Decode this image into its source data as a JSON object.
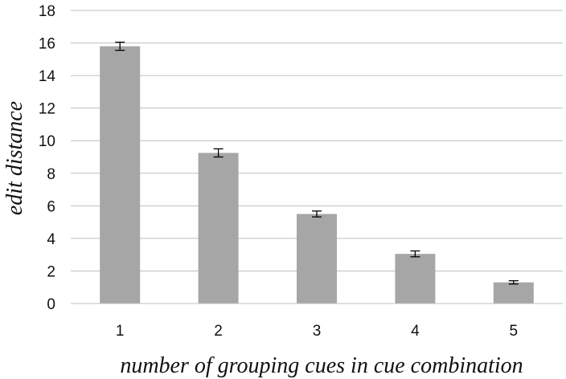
{
  "chart_data": {
    "type": "bar",
    "title": "",
    "xlabel": "number of grouping cues in cue combination",
    "ylabel": "edit distance",
    "categories": [
      "1",
      "2",
      "3",
      "4",
      "5"
    ],
    "values": [
      15.8,
      9.25,
      5.5,
      3.05,
      1.3
    ],
    "error": [
      0.25,
      0.25,
      0.18,
      0.18,
      0.1
    ],
    "ylim": [
      0,
      18
    ],
    "yticks": [
      0,
      2,
      4,
      6,
      8,
      10,
      12,
      14,
      16,
      18
    ],
    "grid": "horizontal",
    "legend": "none",
    "bar_color": "#a6a6a6",
    "gridline_color": "#bfbfbf",
    "error_bar_color": "#000000"
  }
}
